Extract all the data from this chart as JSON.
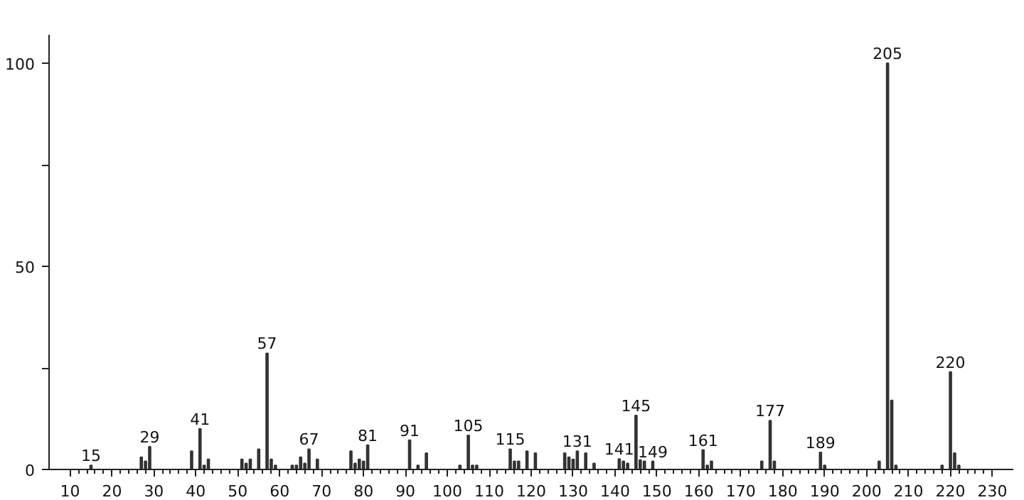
{
  "chart_data": {
    "type": "bar",
    "color": "#333333",
    "x": [
      15,
      27,
      28,
      29,
      39,
      41,
      42,
      43,
      51,
      52,
      53,
      55,
      57,
      58,
      59,
      63,
      64,
      65,
      66,
      67,
      69,
      77,
      78,
      79,
      80,
      81,
      91,
      93,
      95,
      103,
      105,
      106,
      107,
      115,
      116,
      117,
      119,
      121,
      128,
      129,
      130,
      131,
      133,
      135,
      141,
      142,
      143,
      145,
      146,
      147,
      149,
      161,
      162,
      163,
      175,
      177,
      178,
      189,
      190,
      203,
      205,
      206,
      207,
      218,
      220,
      221,
      222
    ],
    "values": [
      1,
      3,
      2,
      5.6,
      4.5,
      10,
      1,
      2.5,
      2.5,
      1.5,
      2.5,
      5,
      28.6,
      2.5,
      1,
      1,
      1,
      3,
      1.5,
      5,
      2.5,
      4.5,
      1.5,
      2.5,
      2,
      6,
      7.2,
      1,
      4,
      1,
      8.4,
      1,
      1,
      5,
      2,
      2,
      4.5,
      4,
      4,
      3,
      2.5,
      4.5,
      4,
      1.5,
      2.6,
      2,
      1.5,
      13.3,
      2.3,
      2,
      2,
      4.8,
      1,
      2,
      2,
      12,
      2,
      4.2,
      1,
      2,
      100,
      17,
      1,
      1,
      24,
      4,
      1
    ],
    "xlim": [
      5,
      235
    ],
    "ylim": [
      0,
      107
    ],
    "xticks": [
      10,
      20,
      30,
      40,
      50,
      60,
      70,
      80,
      90,
      100,
      110,
      120,
      130,
      140,
      150,
      160,
      170,
      180,
      190,
      200,
      210,
      220,
      230
    ],
    "yticks": [
      0,
      {
        "value": 25,
        "label": null
      },
      50,
      {
        "value": 75,
        "label": null
      },
      100
    ],
    "grid": false,
    "annotations": [
      {
        "text": "15",
        "x": 15,
        "y": 1
      },
      {
        "text": "29",
        "x": 29,
        "y": 5.6
      },
      {
        "text": "41",
        "x": 41,
        "y": 10
      },
      {
        "text": "57",
        "x": 57,
        "y": 28.6
      },
      {
        "text": "67",
        "x": 67,
        "y": 5
      },
      {
        "text": "81",
        "x": 81,
        "y": 6
      },
      {
        "text": "91",
        "x": 91,
        "y": 7.2
      },
      {
        "text": "105",
        "x": 105,
        "y": 8.4
      },
      {
        "text": "115",
        "x": 115,
        "y": 5
      },
      {
        "text": "131",
        "x": 131,
        "y": 4.5
      },
      {
        "text": "141",
        "x": 141,
        "y": 2.6
      },
      {
        "text": "145",
        "x": 145,
        "y": 13.3
      },
      {
        "text": "149",
        "x": 149,
        "y": 2
      },
      {
        "text": "161",
        "x": 161,
        "y": 4.8
      },
      {
        "text": "177",
        "x": 177,
        "y": 12
      },
      {
        "text": "189",
        "x": 189,
        "y": 4.2
      },
      {
        "text": "205",
        "x": 205,
        "y": 100
      },
      {
        "text": "220",
        "x": 220,
        "y": 24
      }
    ]
  }
}
